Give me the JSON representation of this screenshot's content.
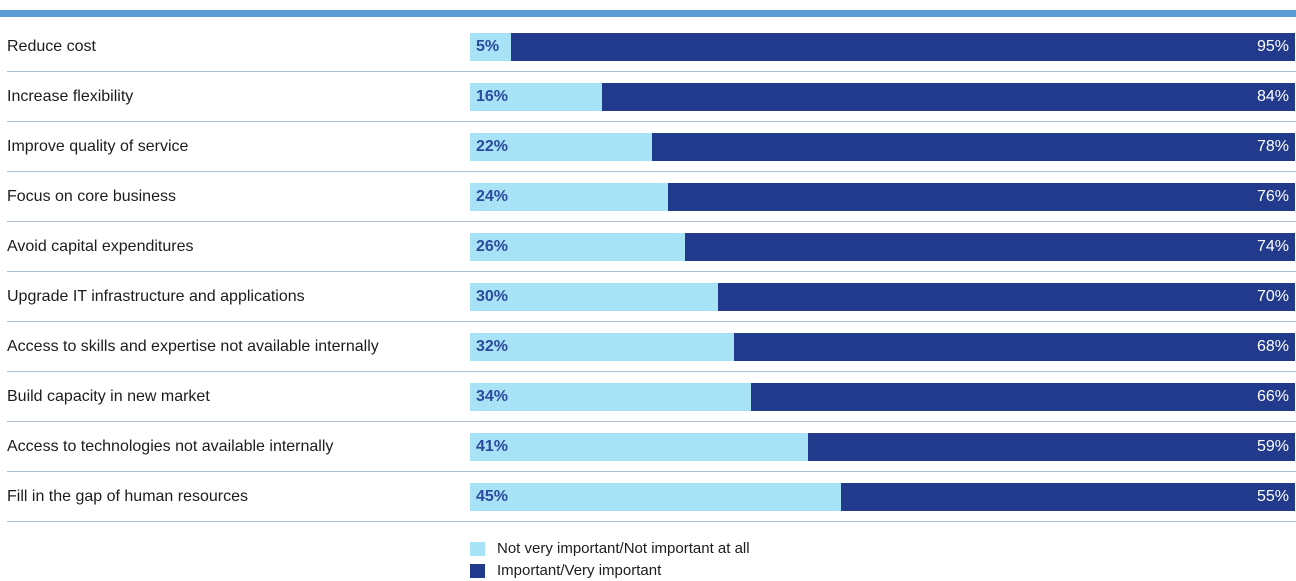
{
  "chart_data": {
    "type": "bar",
    "stacked": true,
    "orientation": "horizontal",
    "categories": [
      "Reduce cost",
      "Increase flexibility",
      "Improve quality of service",
      "Focus on core business",
      "Avoid capital expenditures",
      "Upgrade IT infrastructure and applications",
      "Access to skills and expertise not available internally",
      "Build capacity in new market",
      "Access to technologies not available internally",
      "Fill in the gap of human resources"
    ],
    "series": [
      {
        "name": "Not very important/Not important at all",
        "values": [
          5,
          16,
          22,
          24,
          26,
          30,
          32,
          34,
          41,
          45
        ],
        "labels": [
          "5%",
          "16%",
          "22%",
          "24%",
          "26%",
          "30%",
          "32%",
          "34%",
          "41%",
          "45%"
        ],
        "color": "#a8e2f7"
      },
      {
        "name": "Important/Very important",
        "values": [
          95,
          84,
          78,
          76,
          74,
          70,
          68,
          66,
          59,
          55
        ],
        "labels": [
          "95%",
          "84%",
          "78%",
          "76%",
          "74%",
          "70%",
          "68%",
          "66%",
          "59%",
          "55%"
        ],
        "color": "#223a8c"
      }
    ],
    "xlim": [
      0,
      100
    ],
    "legend_position": "bottom",
    "label_color": "#2b4a9a",
    "rule_color": "#5b9bd5",
    "divider_color": "#aebfd6"
  }
}
